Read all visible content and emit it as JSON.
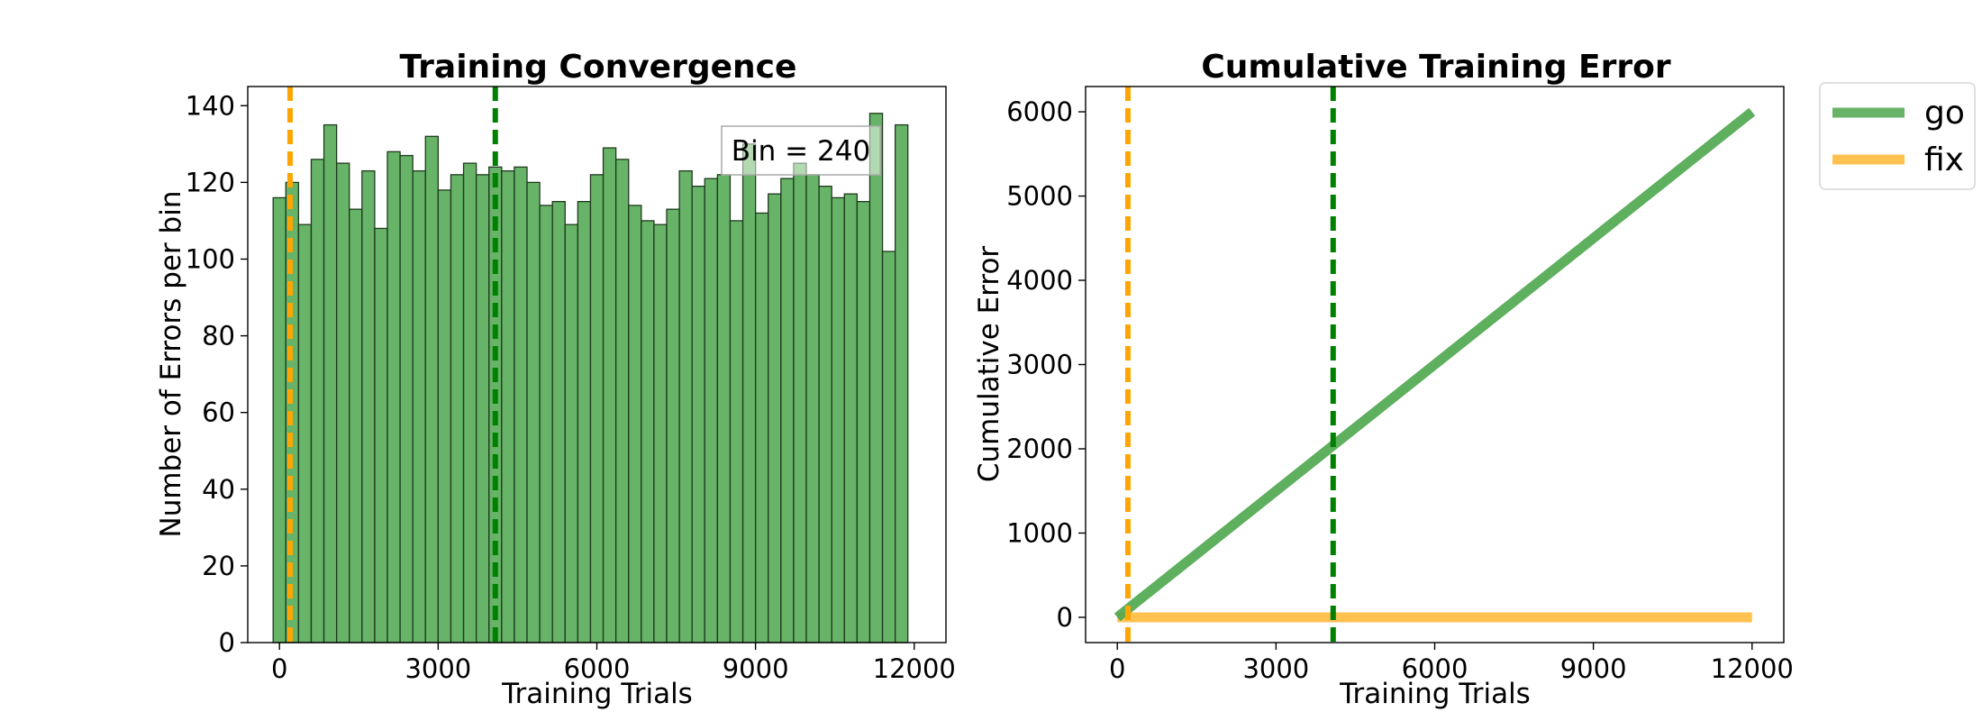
{
  "chart_data": [
    {
      "type": "bar",
      "title": "Training Convergence",
      "xlabel": "Training Trials",
      "ylabel": "Number of Errors per bin",
      "xlim": [
        -600,
        12600
      ],
      "ylim": [
        0,
        145
      ],
      "bin_width": 240,
      "x_ticks": [
        0,
        3000,
        6000,
        9000,
        12000
      ],
      "y_ticks": [
        0,
        20,
        40,
        60,
        80,
        100,
        120,
        140
      ],
      "bin_starts": [
        -120,
        120,
        360,
        600,
        840,
        1080,
        1320,
        1560,
        1800,
        2040,
        2280,
        2520,
        2760,
        3000,
        3240,
        3480,
        3720,
        3960,
        4200,
        4440,
        4680,
        4920,
        5160,
        5400,
        5640,
        5880,
        6120,
        6360,
        6600,
        6840,
        7080,
        7320,
        7560,
        7800,
        8040,
        8280,
        8520,
        8760,
        9000,
        9240,
        9480,
        9720,
        9960,
        10200,
        10440,
        10680,
        10920,
        11160,
        11400,
        11640
      ],
      "values": [
        116,
        120,
        109,
        126,
        135,
        125,
        113,
        123,
        108,
        128,
        127,
        123,
        132,
        118,
        122,
        125,
        122,
        124,
        123,
        124,
        120,
        114,
        115,
        109,
        115,
        122,
        129,
        126,
        114,
        110,
        109,
        113,
        123,
        119,
        121,
        122,
        110,
        130,
        112,
        117,
        121,
        125,
        122,
        119,
        116,
        117,
        115,
        138,
        102,
        135
      ],
      "bar_color": "#4ca64c",
      "edge_color": "#1f3a1f",
      "vlines": [
        {
          "x": 200,
          "color": "#ffa500",
          "style": "dashed"
        },
        {
          "x": 4080,
          "color": "#008000",
          "style": "dashed"
        }
      ],
      "annotation": "Bin = 240",
      "grid": false
    },
    {
      "type": "line",
      "title": "Cumulative Training Error",
      "xlabel": "Training Trials",
      "ylabel": "Cumulative Error",
      "xlim": [
        -600,
        12600
      ],
      "ylim": [
        -300,
        6300
      ],
      "x_ticks": [
        0,
        3000,
        6000,
        9000,
        12000
      ],
      "y_ticks": [
        0,
        1000,
        2000,
        3000,
        4000,
        5000,
        6000
      ],
      "series": [
        {
          "name": "go",
          "color": "#4ca64c",
          "x": [
            0,
            1000,
            2000,
            3000,
            4000,
            5000,
            6000,
            7000,
            8000,
            9000,
            10000,
            11000,
            12000
          ],
          "values": [
            0,
            500,
            1000,
            1500,
            2000,
            2500,
            3000,
            3500,
            4000,
            4500,
            5000,
            5500,
            6000
          ]
        },
        {
          "name": "fix",
          "color": "#ffb733",
          "x": [
            0,
            12000
          ],
          "values": [
            0,
            0
          ]
        }
      ],
      "vlines": [
        {
          "x": 200,
          "color": "#ffa500",
          "style": "dashed"
        },
        {
          "x": 4080,
          "color": "#008000",
          "style": "dashed"
        }
      ],
      "legend_position": "outside-top-right",
      "grid": false
    }
  ]
}
